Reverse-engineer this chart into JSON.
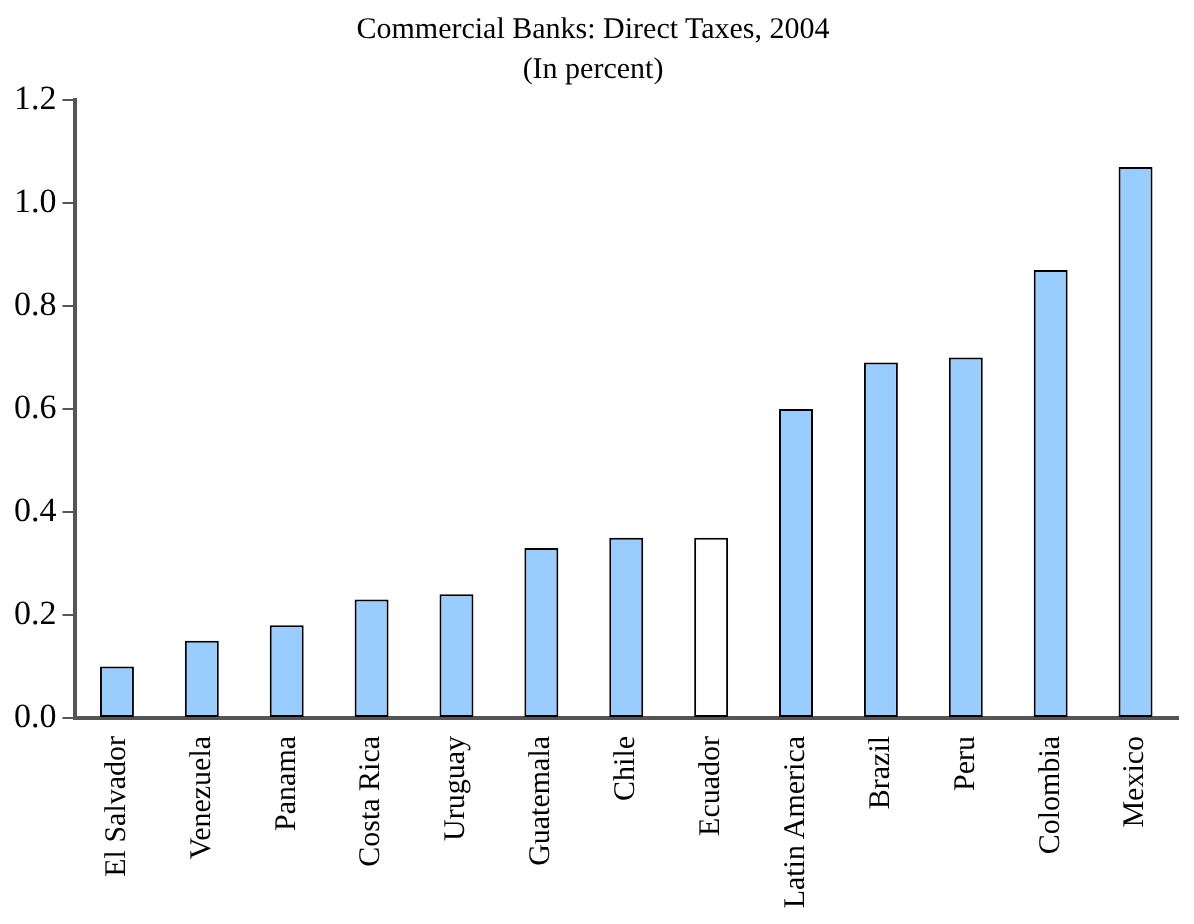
{
  "chart_data": {
    "type": "bar",
    "title": "Commercial Banks: Direct Taxes, 2004",
    "subtitle": "(In percent)",
    "categories": [
      "El Salvador",
      "Venezuela",
      "Panama",
      "Costa Rica",
      "Uruguay",
      "Guatemala",
      "Chile",
      "Ecuador",
      "Latin America",
      "Brazil",
      "Peru",
      "Colombia",
      "Mexico"
    ],
    "values": [
      0.1,
      0.15,
      0.18,
      0.23,
      0.24,
      0.33,
      0.35,
      0.35,
      0.6,
      0.69,
      0.7,
      0.87,
      1.07
    ],
    "colors": [
      "#99ccff",
      "#99ccff",
      "#99ccff",
      "#99ccff",
      "#99ccff",
      "#99ccff",
      "#99ccff",
      "#ffffff",
      "#99ccff",
      "#99ccff",
      "#99ccff",
      "#99ccff",
      "#99ccff"
    ],
    "ylim": [
      0,
      1.2
    ],
    "yticks": [
      {
        "value": 0,
        "label": "0.0"
      },
      {
        "value": 0.2,
        "label": "0.2"
      },
      {
        "value": 0.4,
        "label": "0.4"
      },
      {
        "value": 0.6,
        "label": "0.6"
      },
      {
        "value": 0.8,
        "label": "0.8"
      },
      {
        "value": 1,
        "label": "1.0"
      },
      {
        "value": 1.2,
        "label": "1.2"
      }
    ],
    "grid": false,
    "legend": false
  }
}
